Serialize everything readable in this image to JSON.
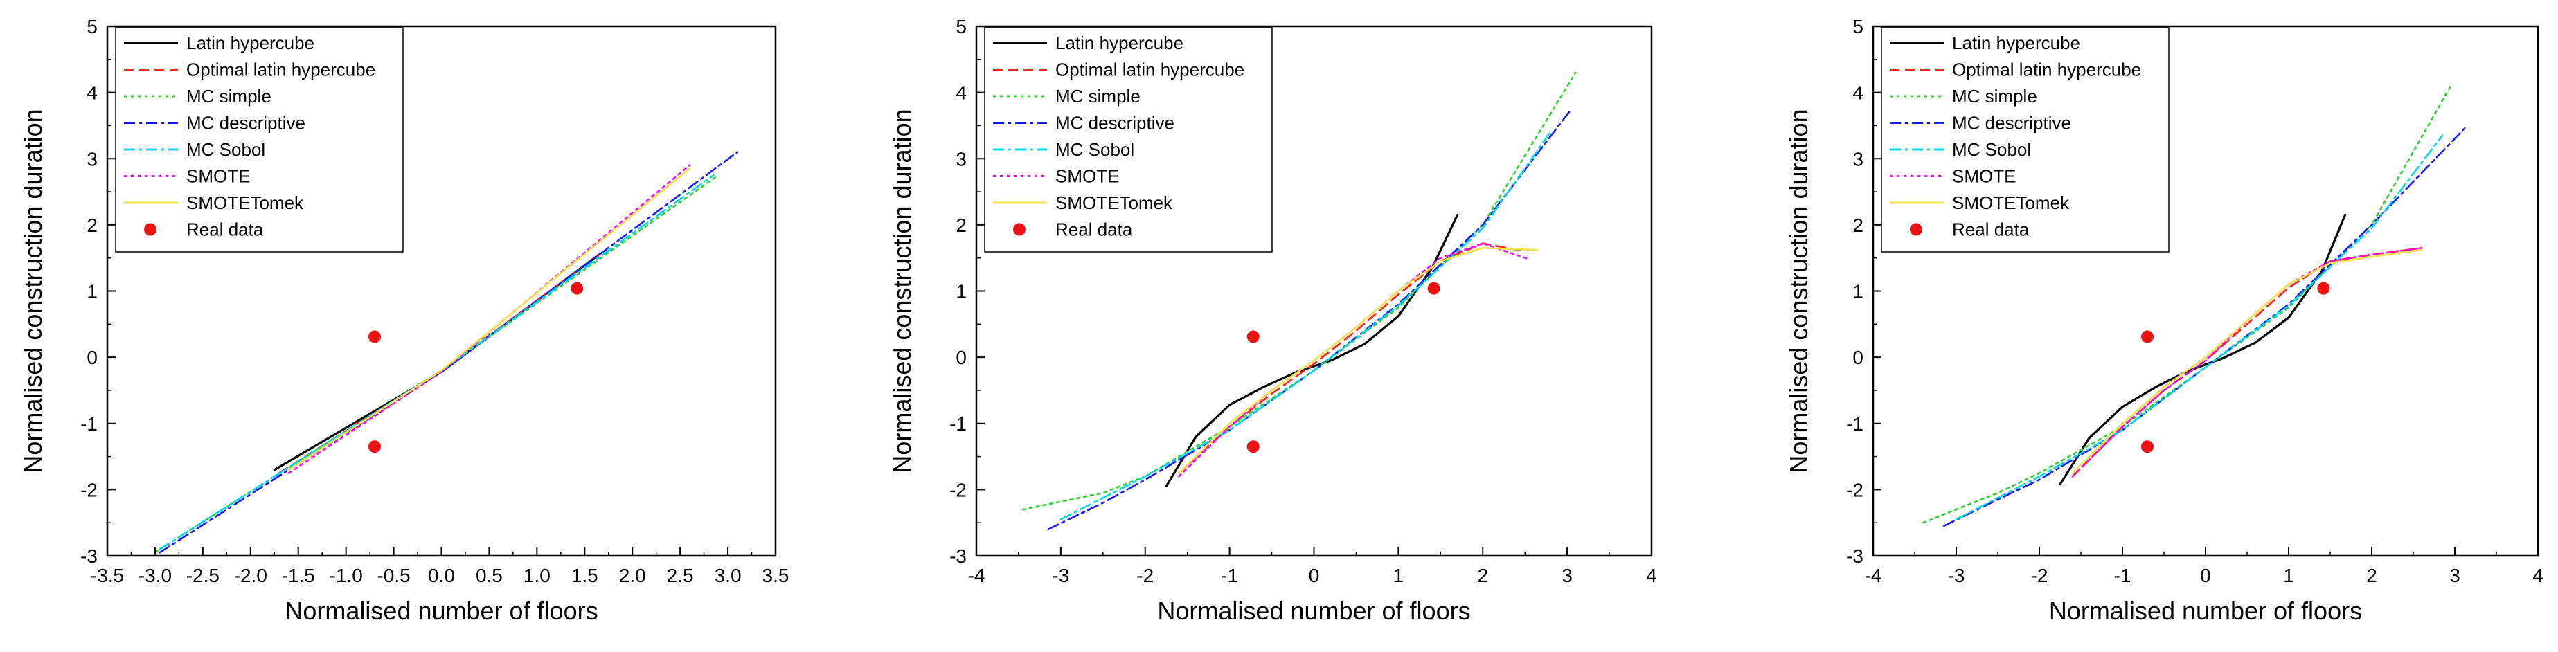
{
  "figure": {
    "description_panels": 3
  },
  "legend_entries": [
    {
      "name": "Latin hypercube",
      "color": "#000000",
      "dash": "solid"
    },
    {
      "name": "Optimal latin hypercube",
      "color": "#ff2020",
      "dash": "dash"
    },
    {
      "name": "MC simple",
      "color": "#30d030",
      "dash": "dot"
    },
    {
      "name": "MC descriptive",
      "color": "#1a1aff",
      "dash": "dashdot"
    },
    {
      "name": "MC Sobol",
      "color": "#00d8e8",
      "dash": "dashdot"
    },
    {
      "name": "SMOTE",
      "color": "#ff00ff",
      "dash": "dot"
    },
    {
      "name": "SMOTETomek",
      "color": "#f2e24a",
      "dash": "solid"
    },
    {
      "name": "Real data",
      "color": "#ee1111",
      "marker": "circle"
    }
  ],
  "chart_data": [
    {
      "type": "line",
      "title": "",
      "xlabel": "Normalised number of floors",
      "ylabel": "Normalised construction duration",
      "xlim": [
        -3.5,
        3.5
      ],
      "ylim": [
        -3,
        5
      ],
      "xticks": [
        "-3.5",
        "-3.0",
        "-2.5",
        "-2.0",
        "-1.5",
        "-1.0",
        "-0.5",
        "0.0",
        "0.5",
        "1.0",
        "1.5",
        "2.0",
        "2.5",
        "3.0",
        "3.5"
      ],
      "yticks": [
        "-3",
        "-2",
        "-1",
        "0",
        "1",
        "2",
        "3",
        "4",
        "5"
      ],
      "legend_position": "top-left",
      "series": [
        {
          "name": "Latin hypercube",
          "x": [
            -1.75,
            0,
            1.65
          ],
          "y": [
            -1.7,
            -0.22,
            1.55
          ]
        },
        {
          "name": "Optimal latin hypercube",
          "x": [
            -1.7,
            0,
            1.7
          ],
          "y": [
            -1.75,
            -0.2,
            1.6
          ]
        },
        {
          "name": "MC simple",
          "x": [
            -3.0,
            0,
            2.9
          ],
          "y": [
            -2.95,
            -0.2,
            2.75
          ]
        },
        {
          "name": "MC descriptive",
          "x": [
            -2.95,
            0,
            3.1
          ],
          "y": [
            -2.95,
            -0.22,
            3.1
          ]
        },
        {
          "name": "MC Sobol",
          "x": [
            -2.95,
            0,
            2.85
          ],
          "y": [
            -2.9,
            -0.2,
            2.75
          ]
        },
        {
          "name": "SMOTE",
          "x": [
            -1.6,
            0,
            2.6
          ],
          "y": [
            -1.75,
            -0.22,
            2.9
          ]
        },
        {
          "name": "SMOTETomek",
          "x": [
            -1.6,
            0,
            2.6
          ],
          "y": [
            -1.7,
            -0.2,
            2.85
          ]
        }
      ],
      "points": {
        "name": "Real data",
        "x": [
          -0.7,
          -0.7,
          1.42
        ],
        "y": [
          0.31,
          -1.35,
          1.04
        ]
      }
    },
    {
      "type": "line",
      "title": "",
      "xlabel": "Normalised number of floors",
      "ylabel": "Normalised construction duration",
      "xlim": [
        -4,
        4
      ],
      "ylim": [
        -3,
        5
      ],
      "xticks": [
        "-4",
        "-3",
        "-2",
        "-1",
        "0",
        "1",
        "2",
        "3",
        "4"
      ],
      "yticks": [
        "-3",
        "-2",
        "-1",
        "0",
        "1",
        "2",
        "3",
        "4",
        "5"
      ],
      "legend_position": "top-left",
      "series": [
        {
          "name": "Latin hypercube",
          "x": [
            -1.75,
            -1.4,
            -1.0,
            -0.6,
            -0.2,
            0.2,
            0.6,
            1.0,
            1.4,
            1.7
          ],
          "y": [
            -1.95,
            -1.2,
            -0.72,
            -0.45,
            -0.22,
            -0.05,
            0.2,
            0.62,
            1.35,
            2.15
          ]
        },
        {
          "name": "Optimal latin hypercube",
          "x": [
            -1.6,
            -1.0,
            -0.5,
            0,
            0.5,
            1.0,
            1.5,
            2.0,
            2.5
          ],
          "y": [
            -1.75,
            -1.05,
            -0.55,
            -0.1,
            0.4,
            0.95,
            1.45,
            1.72,
            1.6
          ]
        },
        {
          "name": "MC simple",
          "x": [
            -3.45,
            -2.5,
            -2.0,
            -1.0,
            0,
            1.0,
            2.0,
            3.1
          ],
          "y": [
            -2.3,
            -2.05,
            -1.8,
            -1.05,
            -0.2,
            0.75,
            2.0,
            4.3
          ]
        },
        {
          "name": "MC descriptive",
          "x": [
            -3.15,
            -2.5,
            -2.0,
            -1.0,
            0,
            1.0,
            2.0,
            3.05
          ],
          "y": [
            -2.6,
            -2.2,
            -1.85,
            -1.1,
            -0.2,
            0.8,
            2.0,
            3.75
          ]
        },
        {
          "name": "MC Sobol",
          "x": [
            -3.0,
            -2.0,
            -1.0,
            0,
            1.0,
            2.0,
            2.8
          ],
          "y": [
            -2.45,
            -1.8,
            -1.1,
            -0.2,
            0.78,
            1.95,
            3.4
          ]
        },
        {
          "name": "SMOTE",
          "x": [
            -1.6,
            -1.0,
            -0.5,
            0,
            0.5,
            1.0,
            1.5,
            2.0,
            2.55
          ],
          "y": [
            -1.8,
            -1.05,
            -0.5,
            -0.05,
            0.45,
            1.0,
            1.5,
            1.72,
            1.48
          ]
        },
        {
          "name": "SMOTETomek",
          "x": [
            -1.6,
            -1.0,
            -0.5,
            0,
            0.5,
            1.0,
            1.5,
            2.0,
            2.65
          ],
          "y": [
            -1.75,
            -1.0,
            -0.5,
            -0.05,
            0.45,
            1.0,
            1.45,
            1.65,
            1.62
          ]
        }
      ],
      "points": {
        "name": "Real data",
        "x": [
          -0.72,
          -0.72,
          1.42
        ],
        "y": [
          0.31,
          -1.35,
          1.04
        ]
      }
    },
    {
      "type": "line",
      "title": "",
      "xlabel": "Normalised number of floors",
      "ylabel": "Normalised construction duration",
      "xlim": [
        -4,
        4
      ],
      "ylim": [
        -3,
        5
      ],
      "xticks": [
        "-4",
        "-3",
        "-2",
        "-1",
        "0",
        "1",
        "2",
        "3",
        "4"
      ],
      "yticks": [
        "-3",
        "-2",
        "-1",
        "0",
        "1",
        "2",
        "3",
        "4",
        "5"
      ],
      "legend_position": "top-left",
      "series": [
        {
          "name": "Latin hypercube",
          "x": [
            -1.75,
            -1.4,
            -1.0,
            -0.6,
            -0.2,
            0.2,
            0.6,
            1.0,
            1.4,
            1.68
          ],
          "y": [
            -1.92,
            -1.22,
            -0.75,
            -0.45,
            -0.2,
            -0.02,
            0.22,
            0.6,
            1.3,
            2.15
          ]
        },
        {
          "name": "Optimal latin hypercube",
          "x": [
            -1.6,
            -1.0,
            -0.5,
            0,
            0.5,
            1.0,
            1.5,
            2.0,
            2.6
          ],
          "y": [
            -1.8,
            -1.05,
            -0.5,
            -0.05,
            0.5,
            1.05,
            1.45,
            1.55,
            1.65
          ]
        },
        {
          "name": "MC simple",
          "x": [
            -3.4,
            -2.5,
            -2.0,
            -1.0,
            0,
            1.0,
            2.0,
            2.95
          ],
          "y": [
            -2.5,
            -2.05,
            -1.75,
            -1.05,
            -0.15,
            0.75,
            2.0,
            4.1
          ]
        },
        {
          "name": "MC descriptive",
          "x": [
            -3.15,
            -2.5,
            -2.0,
            -1.0,
            0,
            1.0,
            2.0,
            3.15
          ],
          "y": [
            -2.55,
            -2.15,
            -1.85,
            -1.1,
            -0.15,
            0.8,
            2.0,
            3.5
          ]
        },
        {
          "name": "MC Sobol",
          "x": [
            -3.0,
            -2.0,
            -1.0,
            0,
            1.0,
            2.0,
            2.85
          ],
          "y": [
            -2.45,
            -1.8,
            -1.1,
            -0.15,
            0.78,
            1.95,
            3.35
          ]
        },
        {
          "name": "SMOTE",
          "x": [
            -1.6,
            -1.0,
            -0.5,
            0,
            0.5,
            1.0,
            1.5,
            2.0,
            2.6
          ],
          "y": [
            -1.8,
            -1.05,
            -0.5,
            -0.05,
            0.55,
            1.1,
            1.45,
            1.55,
            1.65
          ]
        },
        {
          "name": "SMOTETomek",
          "x": [
            -1.6,
            -1.0,
            -0.5,
            0,
            0.5,
            1.0,
            1.5,
            2.0,
            2.6
          ],
          "y": [
            -1.75,
            -1.0,
            -0.45,
            0,
            0.55,
            1.1,
            1.42,
            1.52,
            1.62
          ]
        }
      ],
      "points": {
        "name": "Real data",
        "x": [
          -0.7,
          -0.7,
          1.42
        ],
        "y": [
          0.31,
          -1.35,
          1.04
        ]
      }
    }
  ]
}
